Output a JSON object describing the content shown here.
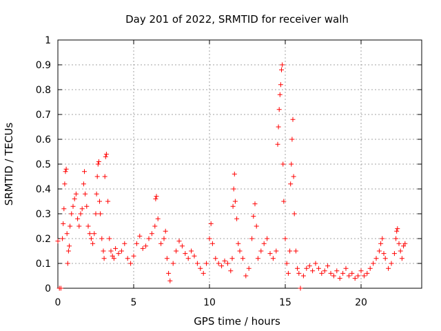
{
  "chart_data": {
    "type": "scatter",
    "title": "Day 201 of 2022, SRMTID for receiver walh",
    "xlabel": "GPS time / hours",
    "ylabel": "SRMTID / TECUs",
    "xlim": [
      0,
      24
    ],
    "ylim": [
      0,
      1
    ],
    "x_ticks": [
      0,
      5,
      10,
      15,
      20
    ],
    "y_ticks": [
      0,
      0.1,
      0.2,
      0.3,
      0.4,
      0.5,
      0.6,
      0.7,
      0.8,
      0.9,
      1
    ],
    "x_tick_labels": [
      "0",
      "5",
      "10",
      "15",
      "20"
    ],
    "y_tick_labels": [
      "0",
      "0.1",
      "0.2",
      "0.3",
      "0.4",
      "0.5",
      "0.6",
      "0.7",
      "0.8",
      "0.9",
      "1"
    ],
    "grid": true,
    "marker": "+",
    "series": [
      {
        "name": "SRMTID",
        "color": "#ff0000",
        "points": [
          [
            0.1,
            0.0
          ],
          [
            0.2,
            0.0
          ],
          [
            0.0,
            0.19
          ],
          [
            0.3,
            0.2
          ],
          [
            0.35,
            0.26
          ],
          [
            0.4,
            0.32
          ],
          [
            0.45,
            0.42
          ],
          [
            0.5,
            0.47
          ],
          [
            0.55,
            0.48
          ],
          [
            0.6,
            0.22
          ],
          [
            0.65,
            0.1
          ],
          [
            0.7,
            0.15
          ],
          [
            0.75,
            0.17
          ],
          [
            0.8,
            0.25
          ],
          [
            0.9,
            0.3
          ],
          [
            1.0,
            0.33
          ],
          [
            1.1,
            0.36
          ],
          [
            1.2,
            0.38
          ],
          [
            1.3,
            0.28
          ],
          [
            1.4,
            0.25
          ],
          [
            1.5,
            0.3
          ],
          [
            1.6,
            0.32
          ],
          [
            1.7,
            0.42
          ],
          [
            1.75,
            0.47
          ],
          [
            1.8,
            0.38
          ],
          [
            1.9,
            0.33
          ],
          [
            2.0,
            0.25
          ],
          [
            2.1,
            0.22
          ],
          [
            2.2,
            0.2
          ],
          [
            2.3,
            0.18
          ],
          [
            2.4,
            0.22
          ],
          [
            2.5,
            0.3
          ],
          [
            2.55,
            0.38
          ],
          [
            2.6,
            0.45
          ],
          [
            2.65,
            0.5
          ],
          [
            2.7,
            0.51
          ],
          [
            2.75,
            0.35
          ],
          [
            2.8,
            0.3
          ],
          [
            2.9,
            0.2
          ],
          [
            3.0,
            0.15
          ],
          [
            3.05,
            0.12
          ],
          [
            3.1,
            0.45
          ],
          [
            3.15,
            0.53
          ],
          [
            3.2,
            0.54
          ],
          [
            3.3,
            0.35
          ],
          [
            3.4,
            0.2
          ],
          [
            3.5,
            0.15
          ],
          [
            3.6,
            0.13
          ],
          [
            3.7,
            0.12
          ],
          [
            3.8,
            0.16
          ],
          [
            4.0,
            0.14
          ],
          [
            4.2,
            0.15
          ],
          [
            4.4,
            0.18
          ],
          [
            4.6,
            0.12
          ],
          [
            4.8,
            0.1
          ],
          [
            5.0,
            0.13
          ],
          [
            5.2,
            0.18
          ],
          [
            5.4,
            0.21
          ],
          [
            5.6,
            0.16
          ],
          [
            5.8,
            0.17
          ],
          [
            6.0,
            0.2
          ],
          [
            6.2,
            0.22
          ],
          [
            6.4,
            0.25
          ],
          [
            6.45,
            0.36
          ],
          [
            6.5,
            0.37
          ],
          [
            6.6,
            0.28
          ],
          [
            6.8,
            0.18
          ],
          [
            7.0,
            0.2
          ],
          [
            7.1,
            0.23
          ],
          [
            7.2,
            0.12
          ],
          [
            7.3,
            0.06
          ],
          [
            7.4,
            0.03
          ],
          [
            7.6,
            0.1
          ],
          [
            7.8,
            0.15
          ],
          [
            8.0,
            0.19
          ],
          [
            8.2,
            0.17
          ],
          [
            8.4,
            0.14
          ],
          [
            8.6,
            0.12
          ],
          [
            8.8,
            0.15
          ],
          [
            9.0,
            0.13
          ],
          [
            9.2,
            0.1
          ],
          [
            9.4,
            0.08
          ],
          [
            9.6,
            0.06
          ],
          [
            9.8,
            0.1
          ],
          [
            10.0,
            0.2
          ],
          [
            10.1,
            0.26
          ],
          [
            10.2,
            0.18
          ],
          [
            10.4,
            0.12
          ],
          [
            10.6,
            0.1
          ],
          [
            10.8,
            0.09
          ],
          [
            11.0,
            0.11
          ],
          [
            11.2,
            0.1
          ],
          [
            11.4,
            0.07
          ],
          [
            11.5,
            0.12
          ],
          [
            11.55,
            0.33
          ],
          [
            11.6,
            0.4
          ],
          [
            11.65,
            0.46
          ],
          [
            11.7,
            0.35
          ],
          [
            11.8,
            0.28
          ],
          [
            11.9,
            0.18
          ],
          [
            12.0,
            0.15
          ],
          [
            12.2,
            0.12
          ],
          [
            12.4,
            0.05
          ],
          [
            12.6,
            0.08
          ],
          [
            12.8,
            0.2
          ],
          [
            12.9,
            0.29
          ],
          [
            13.0,
            0.34
          ],
          [
            13.1,
            0.25
          ],
          [
            13.2,
            0.12
          ],
          [
            13.4,
            0.15
          ],
          [
            13.6,
            0.18
          ],
          [
            13.8,
            0.2
          ],
          [
            14.0,
            0.14
          ],
          [
            14.2,
            0.12
          ],
          [
            14.4,
            0.15
          ],
          [
            14.5,
            0.58
          ],
          [
            14.55,
            0.65
          ],
          [
            14.6,
            0.72
          ],
          [
            14.65,
            0.78
          ],
          [
            14.7,
            0.82
          ],
          [
            14.75,
            0.88
          ],
          [
            14.8,
            0.9
          ],
          [
            14.85,
            0.5
          ],
          [
            14.9,
            0.35
          ],
          [
            15.0,
            0.2
          ],
          [
            15.1,
            0.1
          ],
          [
            15.2,
            0.06
          ],
          [
            15.3,
            0.15
          ],
          [
            15.35,
            0.42
          ],
          [
            15.4,
            0.5
          ],
          [
            15.45,
            0.6
          ],
          [
            15.5,
            0.68
          ],
          [
            15.55,
            0.45
          ],
          [
            15.6,
            0.3
          ],
          [
            15.7,
            0.15
          ],
          [
            15.8,
            0.08
          ],
          [
            15.9,
            0.06
          ],
          [
            16.0,
            0.0
          ],
          [
            16.2,
            0.05
          ],
          [
            16.4,
            0.08
          ],
          [
            16.6,
            0.09
          ],
          [
            16.8,
            0.07
          ],
          [
            17.0,
            0.1
          ],
          [
            17.2,
            0.08
          ],
          [
            17.4,
            0.06
          ],
          [
            17.6,
            0.07
          ],
          [
            17.8,
            0.09
          ],
          [
            18.0,
            0.06
          ],
          [
            18.2,
            0.05
          ],
          [
            18.4,
            0.07
          ],
          [
            18.6,
            0.04
          ],
          [
            18.8,
            0.06
          ],
          [
            19.0,
            0.08
          ],
          [
            19.2,
            0.05
          ],
          [
            19.4,
            0.06
          ],
          [
            19.6,
            0.04
          ],
          [
            19.8,
            0.05
          ],
          [
            20.0,
            0.07
          ],
          [
            20.2,
            0.05
          ],
          [
            20.4,
            0.06
          ],
          [
            20.6,
            0.08
          ],
          [
            20.8,
            0.1
          ],
          [
            21.0,
            0.12
          ],
          [
            21.2,
            0.15
          ],
          [
            21.3,
            0.18
          ],
          [
            21.4,
            0.2
          ],
          [
            21.5,
            0.14
          ],
          [
            21.6,
            0.12
          ],
          [
            21.8,
            0.08
          ],
          [
            22.0,
            0.1
          ],
          [
            22.2,
            0.14
          ],
          [
            22.3,
            0.2
          ],
          [
            22.35,
            0.23
          ],
          [
            22.4,
            0.24
          ],
          [
            22.5,
            0.18
          ],
          [
            22.6,
            0.15
          ],
          [
            22.7,
            0.12
          ],
          [
            22.8,
            0.17
          ],
          [
            22.9,
            0.18
          ]
        ]
      }
    ]
  }
}
